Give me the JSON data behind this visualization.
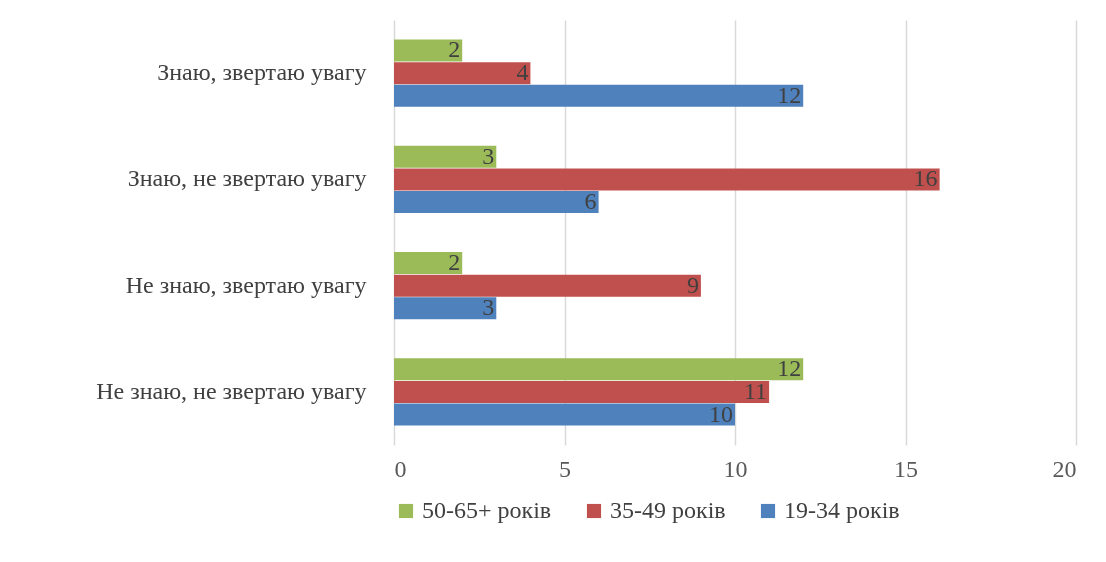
{
  "chart_data": {
    "type": "bar",
    "orientation": "horizontal",
    "categories": [
      "Знаю, звертаю увагу",
      "Знаю, не звертаю увагу",
      "Не знаю, звертаю увагу",
      "Не знаю, не звертаю увагу"
    ],
    "series": [
      {
        "name": "50-65+ років",
        "color": "#9bbb59",
        "values": [
          2,
          3,
          2,
          12
        ]
      },
      {
        "name": "35-49 років",
        "color": "#c0504d",
        "values": [
          4,
          16,
          9,
          11
        ]
      },
      {
        "name": "19-34 років",
        "color": "#4f81bd",
        "values": [
          12,
          6,
          3,
          10
        ]
      }
    ],
    "xlim": [
      0,
      20
    ],
    "xticks": [
      0,
      5,
      10,
      15,
      20
    ],
    "grid": "x",
    "legend": "bottom",
    "data_labels": true
  }
}
